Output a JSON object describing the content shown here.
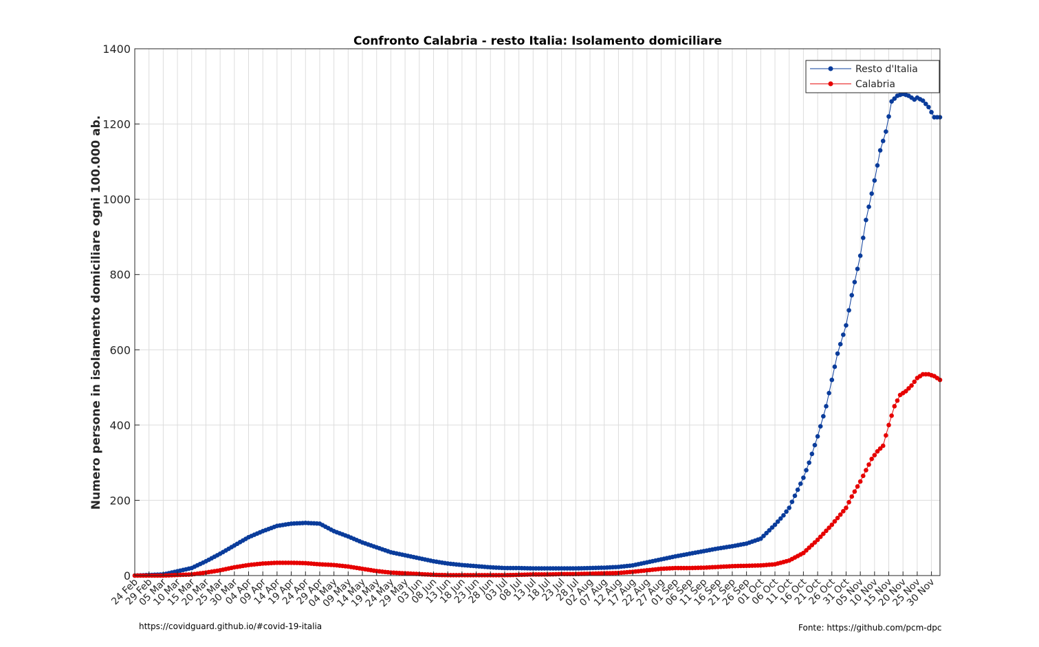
{
  "chart_data": {
    "type": "line",
    "title": "Confronto Calabria - resto Italia: Isolamento domiciliare",
    "xlabel": "",
    "ylabel": "Numero persone in isolamento domiciliare ogni 100.000 ab.",
    "ylim": [
      0,
      1400
    ],
    "yticks": [
      0,
      200,
      400,
      600,
      800,
      1000,
      1200,
      1400
    ],
    "x_start": "2020-02-24",
    "x_end": "2020-12-03",
    "xtick_labels": [
      "24 Feb",
      "29 Feb",
      "05 Mar",
      "10 Mar",
      "15 Mar",
      "20 Mar",
      "25 Mar",
      "30 Mar",
      "04 Apr",
      "09 Apr",
      "14 Apr",
      "19 Apr",
      "24 Apr",
      "29 Apr",
      "04 May",
      "09 May",
      "14 May",
      "19 May",
      "24 May",
      "29 May",
      "03 Jun",
      "08 Jun",
      "13 Jun",
      "18 Jun",
      "23 Jun",
      "28 Jun",
      "03 Jul",
      "08 Jul",
      "13 Jul",
      "18 Jul",
      "23 Jul",
      "28 Jul",
      "02 Aug",
      "07 Aug",
      "12 Aug",
      "17 Aug",
      "22 Aug",
      "27 Aug",
      "01 Sep",
      "06 Sep",
      "11 Sep",
      "16 Sep",
      "21 Sep",
      "26 Sep",
      "01 Oct",
      "06 Oct",
      "11 Oct",
      "16 Oct",
      "21 Oct",
      "26 Oct",
      "31 Oct",
      "05 Nov",
      "10 Nov",
      "15 Nov",
      "20 Nov",
      "25 Nov",
      "30 Nov"
    ],
    "grid": true,
    "legend_position": "top-right",
    "series": [
      {
        "name": "Resto d'Italia",
        "color": "#0a3c9b",
        "x": [
          "2020-02-24",
          "2020-03-05",
          "2020-03-15",
          "2020-03-20",
          "2020-03-25",
          "2020-03-30",
          "2020-04-04",
          "2020-04-09",
          "2020-04-14",
          "2020-04-19",
          "2020-04-24",
          "2020-04-29",
          "2020-05-04",
          "2020-05-09",
          "2020-05-14",
          "2020-05-19",
          "2020-05-24",
          "2020-05-29",
          "2020-06-03",
          "2020-06-08",
          "2020-06-13",
          "2020-06-18",
          "2020-06-23",
          "2020-06-28",
          "2020-07-03",
          "2020-07-08",
          "2020-07-13",
          "2020-07-18",
          "2020-07-23",
          "2020-07-28",
          "2020-08-02",
          "2020-08-07",
          "2020-08-12",
          "2020-08-17",
          "2020-08-22",
          "2020-08-27",
          "2020-09-01",
          "2020-09-06",
          "2020-09-11",
          "2020-09-16",
          "2020-09-21",
          "2020-09-26",
          "2020-10-01",
          "2020-10-06",
          "2020-10-09",
          "2020-10-11",
          "2020-10-14",
          "2020-10-16",
          "2020-10-18",
          "2020-10-21",
          "2020-10-24",
          "2020-10-26",
          "2020-10-28",
          "2020-10-31",
          "2020-11-02",
          "2020-11-05",
          "2020-11-07",
          "2020-11-10",
          "2020-11-12",
          "2020-11-14",
          "2020-11-16",
          "2020-11-18",
          "2020-11-20",
          "2020-11-22",
          "2020-11-24",
          "2020-11-25",
          "2020-11-27",
          "2020-11-29",
          "2020-12-01",
          "2020-12-03"
        ],
        "values": [
          0,
          3,
          20,
          38,
          58,
          80,
          102,
          118,
          132,
          138,
          140,
          138,
          118,
          104,
          88,
          75,
          62,
          54,
          46,
          38,
          32,
          28,
          25,
          22,
          20,
          20,
          19,
          19,
          19,
          19,
          20,
          21,
          23,
          27,
          35,
          43,
          51,
          58,
          65,
          72,
          78,
          85,
          98,
          135,
          160,
          180,
          228,
          260,
          300,
          370,
          450,
          520,
          590,
          665,
          745,
          850,
          945,
          1050,
          1130,
          1180,
          1260,
          1275,
          1280,
          1275,
          1265,
          1270,
          1262,
          1245,
          1218,
          1218
        ]
      },
      {
        "name": "Calabria",
        "color": "#e60000",
        "x": [
          "2020-02-24",
          "2020-03-05",
          "2020-03-15",
          "2020-03-20",
          "2020-03-25",
          "2020-03-30",
          "2020-04-04",
          "2020-04-09",
          "2020-04-14",
          "2020-04-19",
          "2020-04-24",
          "2020-04-29",
          "2020-05-04",
          "2020-05-09",
          "2020-05-14",
          "2020-05-19",
          "2020-05-24",
          "2020-05-29",
          "2020-06-03",
          "2020-06-08",
          "2020-06-13",
          "2020-06-18",
          "2020-06-23",
          "2020-06-28",
          "2020-07-03",
          "2020-07-08",
          "2020-07-13",
          "2020-07-18",
          "2020-07-23",
          "2020-07-28",
          "2020-08-02",
          "2020-08-07",
          "2020-08-12",
          "2020-08-17",
          "2020-08-22",
          "2020-08-27",
          "2020-09-01",
          "2020-09-06",
          "2020-09-11",
          "2020-09-16",
          "2020-09-21",
          "2020-09-26",
          "2020-10-01",
          "2020-10-06",
          "2020-10-11",
          "2020-10-16",
          "2020-10-21",
          "2020-10-26",
          "2020-10-31",
          "2020-11-02",
          "2020-11-05",
          "2020-11-07",
          "2020-11-09",
          "2020-11-11",
          "2020-11-13",
          "2020-11-15",
          "2020-11-17",
          "2020-11-19",
          "2020-11-21",
          "2020-11-23",
          "2020-11-25",
          "2020-11-27",
          "2020-11-29",
          "2020-12-01",
          "2020-12-03"
        ],
        "values": [
          0,
          0,
          3,
          8,
          14,
          22,
          28,
          32,
          34,
          34,
          33,
          30,
          28,
          24,
          18,
          12,
          8,
          6,
          4,
          2,
          1,
          1,
          1,
          1,
          1,
          2,
          3,
          3,
          4,
          4,
          5,
          6,
          7,
          10,
          14,
          18,
          20,
          20,
          21,
          23,
          25,
          26,
          27,
          30,
          40,
          60,
          95,
          135,
          180,
          210,
          250,
          280,
          310,
          330,
          345,
          400,
          450,
          480,
          490,
          505,
          525,
          535,
          535,
          530,
          520
        ]
      }
    ]
  },
  "footer": {
    "left": "https://covidguard.github.io/#covid-19-italia",
    "right": "Fonte: https://github.com/pcm-dpc"
  }
}
